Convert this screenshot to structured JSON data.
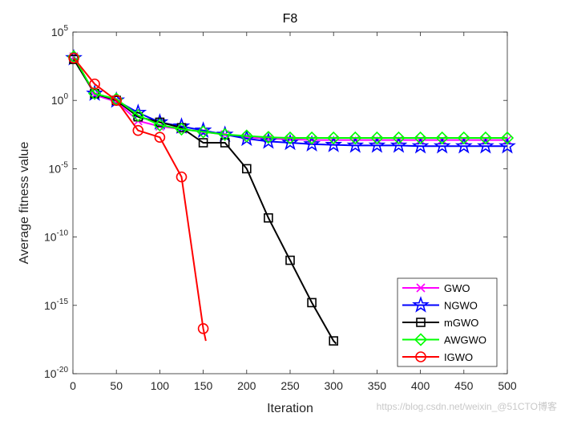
{
  "chart_data": {
    "type": "line",
    "title": "F8",
    "xlabel": "Iteration",
    "ylabel": "Average fitness value",
    "xlim": [
      0,
      500
    ],
    "ylim_log10": [
      -20,
      5
    ],
    "yscale": "log",
    "xticks": [
      0,
      50,
      100,
      150,
      200,
      250,
      300,
      350,
      400,
      450,
      500
    ],
    "yticks": [
      {
        "exp": -20,
        "base": "10",
        "sup": "-20"
      },
      {
        "exp": -15,
        "base": "10",
        "sup": "-15"
      },
      {
        "exp": -10,
        "base": "10",
        "sup": "-10"
      },
      {
        "exp": -5,
        "base": "10",
        "sup": "-5"
      },
      {
        "exp": 0,
        "base": "10",
        "sup": "0"
      },
      {
        "exp": 5,
        "base": "10",
        "sup": "5"
      }
    ],
    "legend_position": "bottom-right",
    "series": [
      {
        "name": "GWO",
        "color": "#ff00ff",
        "marker": "x",
        "x": [
          1,
          25,
          50,
          75,
          100,
          125,
          150,
          175,
          200,
          225,
          250,
          275,
          300,
          325,
          350,
          375,
          400,
          425,
          450,
          475,
          500
        ],
        "log10_y": [
          3.2,
          0.4,
          -0.1,
          -1.5,
          -1.9,
          -2.1,
          -2.3,
          -2.5,
          -2.7,
          -2.8,
          -2.85,
          -2.9,
          -2.9,
          -2.9,
          -2.9,
          -2.9,
          -2.9,
          -2.9,
          -2.9,
          -2.9,
          -2.9
        ]
      },
      {
        "name": "NGWO",
        "color": "#0000ff",
        "marker": "star",
        "x": [
          1,
          25,
          50,
          75,
          100,
          125,
          150,
          175,
          200,
          225,
          250,
          275,
          300,
          325,
          350,
          375,
          400,
          425,
          450,
          475,
          500
        ],
        "log10_y": [
          3.1,
          0.5,
          0.0,
          -0.9,
          -1.6,
          -1.9,
          -2.2,
          -2.5,
          -2.8,
          -3.0,
          -3.1,
          -3.2,
          -3.25,
          -3.3,
          -3.3,
          -3.3,
          -3.35,
          -3.35,
          -3.35,
          -3.35,
          -3.35
        ]
      },
      {
        "name": "mGWO",
        "color": "#000000",
        "marker": "square",
        "x": [
          1,
          25,
          50,
          75,
          100,
          125,
          150,
          175,
          200,
          225,
          250,
          275,
          300
        ],
        "log10_y": [
          3.0,
          0.5,
          0.0,
          -1.2,
          -1.6,
          -2.0,
          -3.1,
          -3.1,
          -5.0,
          -8.6,
          -11.7,
          -14.8,
          -17.6
        ]
      },
      {
        "name": "AWGWO",
        "color": "#00ff00",
        "marker": "diamond",
        "x": [
          1,
          25,
          50,
          75,
          100,
          125,
          150,
          175,
          200,
          225,
          250,
          275,
          300,
          325,
          350,
          375,
          400,
          425,
          450,
          475,
          500
        ],
        "log10_y": [
          3.2,
          0.5,
          0.1,
          -1.1,
          -1.8,
          -2.1,
          -2.3,
          -2.5,
          -2.6,
          -2.7,
          -2.75,
          -2.75,
          -2.75,
          -2.75,
          -2.75,
          -2.75,
          -2.75,
          -2.75,
          -2.75,
          -2.75,
          -2.75
        ]
      },
      {
        "name": "IGWO",
        "color": "#ff0000",
        "marker": "circle",
        "x": [
          1,
          25,
          50,
          75,
          100,
          125,
          150
        ],
        "log10_y": [
          3.1,
          1.2,
          0.0,
          -2.2,
          -2.7,
          -5.6,
          -16.7
        ]
      }
    ]
  },
  "watermark": "https://blog.csdn.net/weixin_@51CTO博客"
}
